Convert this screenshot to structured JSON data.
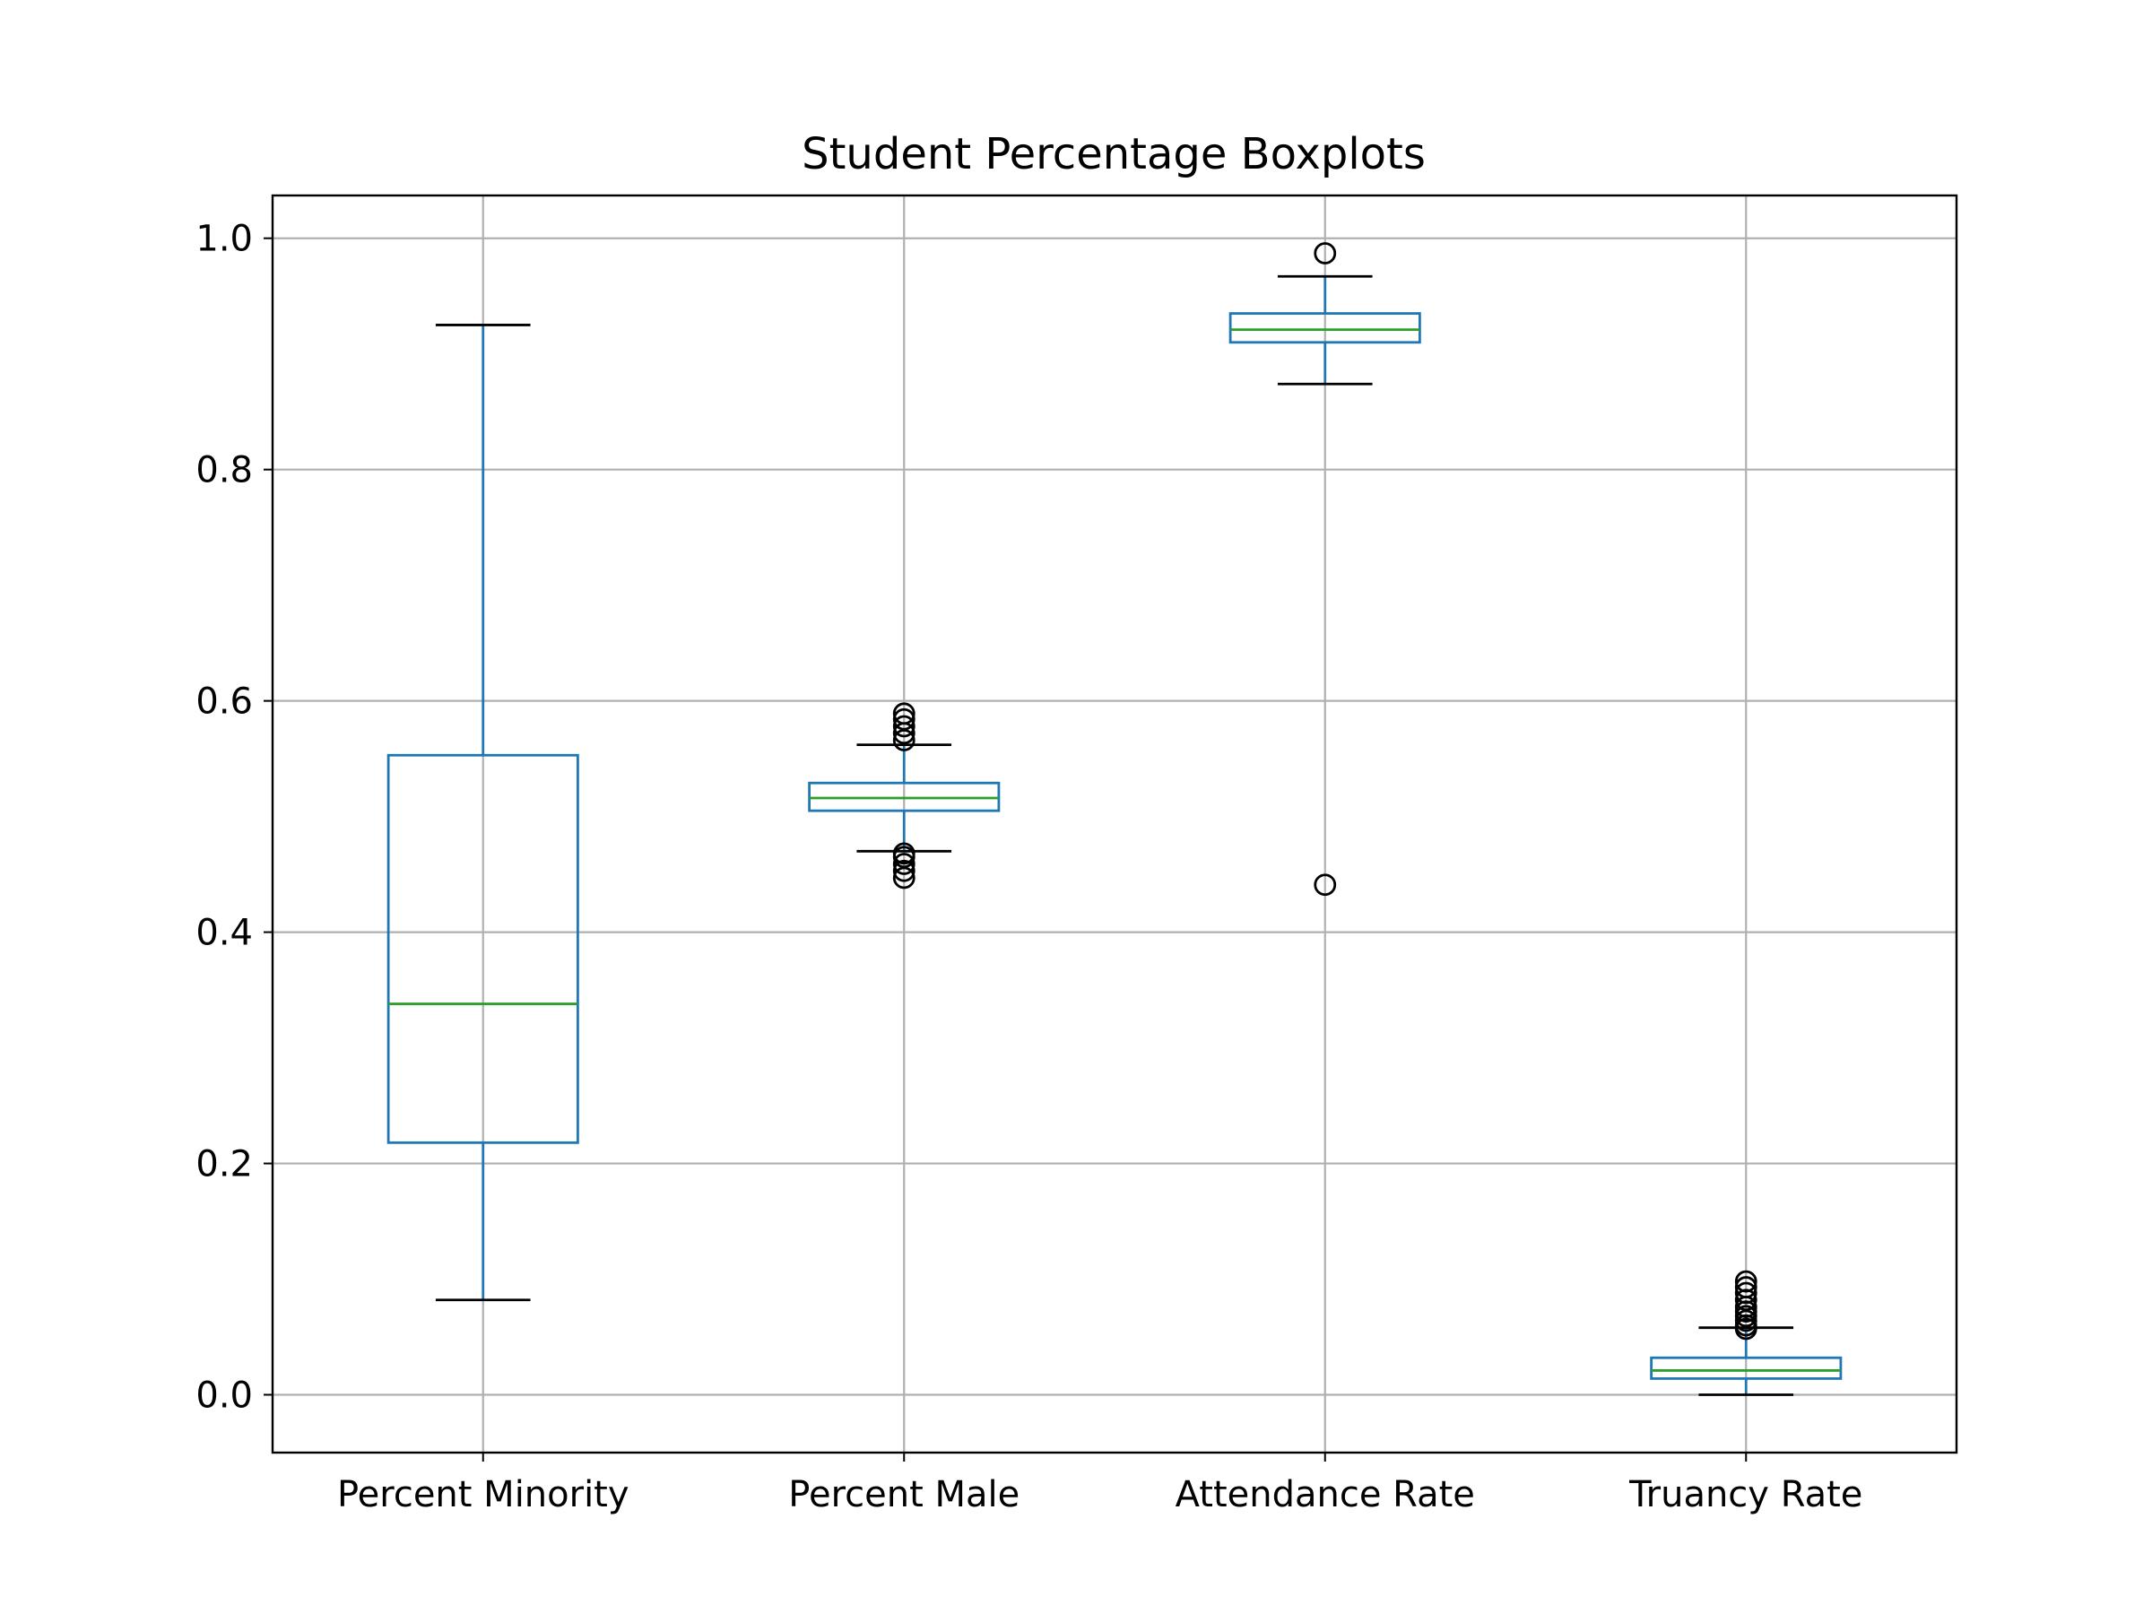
{
  "chart_data": {
    "type": "boxplot",
    "title": "Student Percentage Boxplots",
    "xlabel": "",
    "ylabel": "",
    "ylim": [
      -0.05,
      1.037
    ],
    "yticks": [
      0.0,
      0.2,
      0.4,
      0.6,
      0.8,
      1.0
    ],
    "ytick_labels": [
      "0.0",
      "0.2",
      "0.4",
      "0.6",
      "0.8",
      "1.0"
    ],
    "grid": true,
    "colors": {
      "box": "#1f77b4",
      "median": "#2ca02c",
      "caps": "#000000",
      "fliers": "#000000",
      "grid": "#b0b0b0"
    },
    "categories": [
      "Percent Minority",
      "Percent Male",
      "Attendance Rate",
      "Truancy Rate"
    ],
    "boxes": [
      {
        "label": "Percent Minority",
        "whisker_low": 0.082,
        "q1": 0.218,
        "median": 0.338,
        "q3": 0.553,
        "whisker_high": 0.925,
        "fliers": []
      },
      {
        "label": "Percent Male",
        "whisker_low": 0.47,
        "q1": 0.505,
        "median": 0.516,
        "q3": 0.529,
        "whisker_high": 0.562,
        "fliers": [
          0.447,
          0.453,
          0.459,
          0.465,
          0.468,
          0.566,
          0.572,
          0.578,
          0.584,
          0.589
        ]
      },
      {
        "label": "Attendance Rate",
        "whisker_low": 0.874,
        "q1": 0.91,
        "median": 0.921,
        "q3": 0.935,
        "whisker_high": 0.967,
        "fliers": [
          0.441,
          0.987
        ]
      },
      {
        "label": "Truancy Rate",
        "whisker_low": 0.0,
        "q1": 0.014,
        "median": 0.021,
        "q3": 0.032,
        "whisker_high": 0.058,
        "fliers": [
          0.057,
          0.06,
          0.064,
          0.068,
          0.072,
          0.076,
          0.082,
          0.088,
          0.093,
          0.098
        ]
      }
    ]
  }
}
